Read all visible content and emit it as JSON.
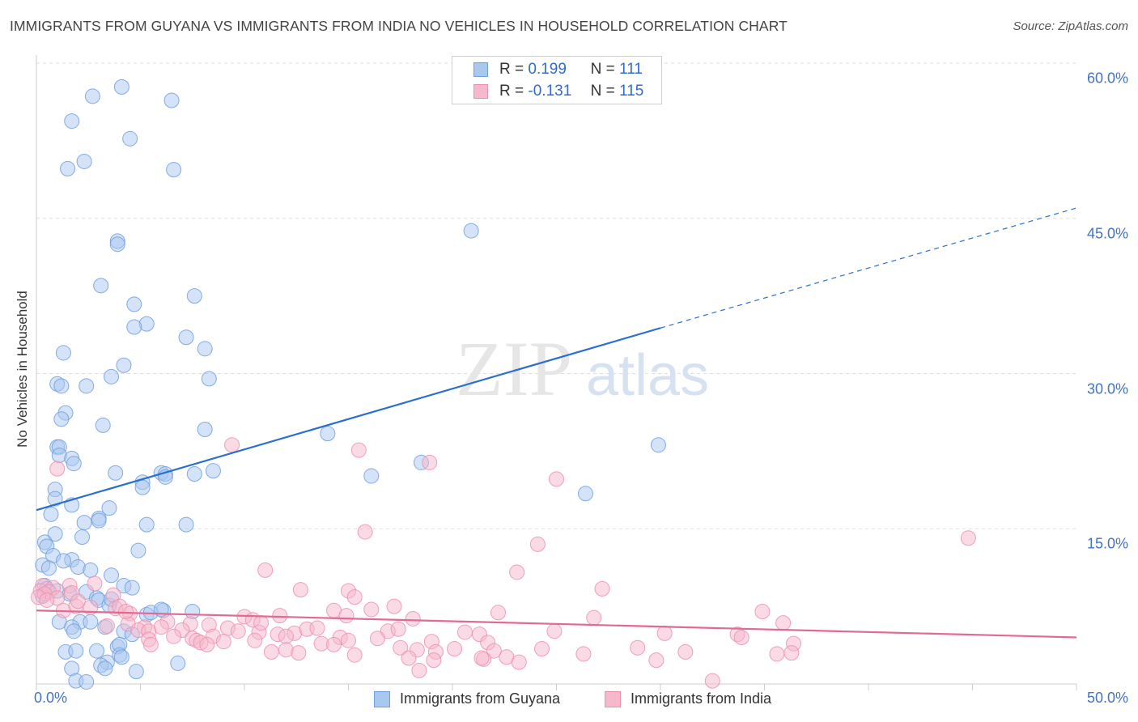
{
  "header": {
    "title": "IMMIGRANTS FROM GUYANA VS IMMIGRANTS FROM INDIA NO VEHICLES IN HOUSEHOLD CORRELATION CHART",
    "source": "Source: ZipAtlas.com"
  },
  "watermark": {
    "zip": "ZIP",
    "atlas": "atlas"
  },
  "legend_top": {
    "rows": [
      {
        "r_label": "R =",
        "r_value": "0.199",
        "n_label": "N =",
        "n_value": "111"
      },
      {
        "r_label": "R =",
        "r_value": "-0.131",
        "n_label": "N =",
        "n_value": "115"
      }
    ]
  },
  "colors": {
    "guyana_fill": "#a9c8f0",
    "guyana_stroke": "#6f9fe0",
    "guyana_line": "#2a6fcc",
    "india_fill": "#f6b8cb",
    "india_stroke": "#ee8fac",
    "india_line": "#e06a92",
    "tick_text": "#4472c4",
    "grid": "#dddddd"
  },
  "chart_data": {
    "type": "scatter",
    "xlabel": "",
    "ylabel": "No Vehicles in Household",
    "xlim": [
      0,
      50
    ],
    "ylim": [
      0,
      60
    ],
    "x_ticks": [
      0,
      5,
      10,
      15,
      20,
      25,
      30,
      35,
      40,
      45,
      50
    ],
    "x_tick_labels": {
      "left": "0.0%",
      "right": "50.0%"
    },
    "y_ticks": [
      {
        "value": 15,
        "label": "15.0%"
      },
      {
        "value": 30,
        "label": "30.0%"
      },
      {
        "value": 45,
        "label": "45.0%"
      },
      {
        "value": 60,
        "label": "60.0%"
      }
    ],
    "grid": true,
    "legend_position": "bottom",
    "series": [
      {
        "name": "Immigrants from Guyana",
        "r": 0.199,
        "n": 111,
        "trend": {
          "x0": 0,
          "y0": 16.8,
          "x1": 30,
          "y1": 34.4,
          "dash_x1": 50,
          "dash_y1": 46.0
        },
        "points": [
          [
            2.7,
            56.8
          ],
          [
            4.1,
            57.7
          ],
          [
            6.5,
            56.4
          ],
          [
            1.7,
            54.4
          ],
          [
            4.5,
            52.7
          ],
          [
            2.3,
            50.5
          ],
          [
            1.5,
            49.8
          ],
          [
            6.6,
            49.7
          ],
          [
            20.9,
            43.8
          ],
          [
            3.9,
            42.8
          ],
          [
            3.9,
            42.5
          ],
          [
            3.1,
            38.5
          ],
          [
            7.6,
            37.5
          ],
          [
            4.7,
            36.7
          ],
          [
            5.3,
            34.8
          ],
          [
            4.7,
            34.5
          ],
          [
            7.2,
            33.5
          ],
          [
            8.1,
            32.4
          ],
          [
            1.3,
            32.0
          ],
          [
            4.2,
            30.8
          ],
          [
            3.6,
            29.7
          ],
          [
            8.3,
            29.5
          ],
          [
            1.0,
            29.0
          ],
          [
            1.2,
            28.8
          ],
          [
            2.4,
            28.8
          ],
          [
            1.4,
            26.2
          ],
          [
            1.2,
            25.6
          ],
          [
            3.2,
            25.0
          ],
          [
            8.1,
            24.6
          ],
          [
            14.0,
            24.2
          ],
          [
            29.9,
            23.1
          ],
          [
            1.0,
            22.9
          ],
          [
            1.1,
            22.9
          ],
          [
            1.1,
            22.1
          ],
          [
            1.7,
            21.8
          ],
          [
            1.8,
            21.3
          ],
          [
            18.5,
            21.4
          ],
          [
            3.8,
            20.4
          ],
          [
            6.0,
            20.4
          ],
          [
            6.2,
            20.3
          ],
          [
            7.6,
            20.3
          ],
          [
            8.5,
            20.6
          ],
          [
            6.2,
            20.0
          ],
          [
            16.1,
            20.1
          ],
          [
            5.1,
            19.5
          ],
          [
            5.1,
            19.0
          ],
          [
            26.4,
            18.4
          ],
          [
            0.9,
            18.8
          ],
          [
            0.9,
            17.9
          ],
          [
            1.7,
            17.3
          ],
          [
            3.5,
            17.0
          ],
          [
            0.7,
            16.4
          ],
          [
            3.0,
            16.0
          ],
          [
            2.3,
            15.6
          ],
          [
            3.0,
            15.8
          ],
          [
            5.3,
            15.4
          ],
          [
            7.2,
            15.4
          ],
          [
            0.9,
            14.5
          ],
          [
            2.2,
            14.2
          ],
          [
            0.4,
            13.7
          ],
          [
            0.5,
            13.3
          ],
          [
            0.8,
            12.4
          ],
          [
            4.9,
            12.9
          ],
          [
            1.7,
            12.0
          ],
          [
            1.3,
            11.9
          ],
          [
            2.0,
            11.3
          ],
          [
            0.3,
            11.5
          ],
          [
            0.6,
            11.2
          ],
          [
            2.6,
            11.0
          ],
          [
            3.6,
            10.5
          ],
          [
            0.4,
            9.5
          ],
          [
            4.2,
            9.5
          ],
          [
            4.6,
            9.3
          ],
          [
            0.5,
            9.2
          ],
          [
            1.0,
            9.0
          ],
          [
            2.4,
            8.9
          ],
          [
            1.6,
            8.7
          ],
          [
            0.3,
            8.5
          ],
          [
            2.9,
            8.3
          ],
          [
            3.0,
            8.1
          ],
          [
            3.5,
            7.6
          ],
          [
            6.1,
            7.1
          ],
          [
            5.3,
            6.7
          ],
          [
            1.1,
            6.0
          ],
          [
            2.1,
            6.0
          ],
          [
            2.6,
            6.0
          ],
          [
            1.7,
            5.5
          ],
          [
            3.3,
            5.5
          ],
          [
            1.8,
            5.1
          ],
          [
            4.2,
            5.1
          ],
          [
            1.4,
            3.1
          ],
          [
            1.9,
            3.2
          ],
          [
            2.9,
            3.2
          ],
          [
            3.9,
            3.6
          ],
          [
            4.0,
            3.8
          ],
          [
            4.0,
            2.8
          ],
          [
            4.1,
            2.6
          ],
          [
            3.4,
            2.1
          ],
          [
            3.1,
            1.8
          ],
          [
            3.3,
            1.5
          ],
          [
            4.8,
            1.2
          ],
          [
            1.7,
            1.5
          ],
          [
            6.8,
            2.0
          ],
          [
            1.9,
            0.3
          ],
          [
            2.4,
            0.2
          ],
          [
            5.5,
            6.9
          ],
          [
            4.6,
            4.8
          ],
          [
            6.0,
            7.2
          ],
          [
            7.5,
            7.0
          ],
          [
            3.6,
            8.2
          ]
        ]
      },
      {
        "name": "Immigrants from India",
        "r": -0.131,
        "n": 115,
        "trend": {
          "x0": 0,
          "y0": 7.1,
          "x1": 50,
          "y1": 4.5
        },
        "points": [
          [
            1.0,
            20.8
          ],
          [
            9.4,
            23.1
          ],
          [
            15.5,
            22.6
          ],
          [
            18.9,
            21.4
          ],
          [
            25.0,
            19.8
          ],
          [
            15.8,
            14.7
          ],
          [
            44.8,
            14.1
          ],
          [
            24.1,
            13.5
          ],
          [
            11.0,
            11.0
          ],
          [
            23.1,
            10.8
          ],
          [
            0.3,
            9.5
          ],
          [
            0.8,
            9.3
          ],
          [
            1.6,
            9.5
          ],
          [
            0.2,
            9.0
          ],
          [
            0.6,
            8.9
          ],
          [
            1.7,
            8.8
          ],
          [
            0.4,
            8.7
          ],
          [
            0.1,
            8.4
          ],
          [
            1.0,
            8.3
          ],
          [
            2.8,
            9.7
          ],
          [
            3.7,
            8.6
          ],
          [
            12.7,
            9.1
          ],
          [
            15.0,
            9.0
          ],
          [
            27.2,
            9.2
          ],
          [
            15.3,
            8.4
          ],
          [
            0.5,
            8.1
          ],
          [
            1.9,
            7.5
          ],
          [
            2.6,
            7.4
          ],
          [
            3.8,
            7.3
          ],
          [
            1.3,
            7.1
          ],
          [
            4.0,
            7.5
          ],
          [
            4.5,
            6.8
          ],
          [
            14.3,
            7.1
          ],
          [
            16.1,
            7.2
          ],
          [
            17.2,
            7.5
          ],
          [
            22.2,
            6.9
          ],
          [
            34.9,
            7.0
          ],
          [
            10.0,
            6.5
          ],
          [
            10.4,
            6.2
          ],
          [
            18.1,
            6.3
          ],
          [
            14.9,
            6.6
          ],
          [
            26.8,
            6.4
          ],
          [
            35.9,
            5.9
          ],
          [
            4.4,
            5.8
          ],
          [
            6.3,
            6.0
          ],
          [
            7.4,
            5.8
          ],
          [
            3.4,
            5.6
          ],
          [
            5.2,
            5.5
          ],
          [
            6.0,
            5.5
          ],
          [
            8.3,
            5.7
          ],
          [
            9.2,
            5.4
          ],
          [
            4.9,
            5.2
          ],
          [
            5.4,
            5.1
          ],
          [
            7.0,
            5.2
          ],
          [
            9.7,
            5.1
          ],
          [
            10.7,
            5.0
          ],
          [
            12.4,
            4.9
          ],
          [
            13.0,
            5.3
          ],
          [
            13.5,
            5.4
          ],
          [
            16.9,
            5.1
          ],
          [
            17.4,
            5.3
          ],
          [
            11.6,
            4.8
          ],
          [
            12.0,
            4.6
          ],
          [
            20.6,
            5.0
          ],
          [
            21.3,
            4.8
          ],
          [
            24.9,
            5.1
          ],
          [
            30.2,
            4.9
          ],
          [
            33.7,
            4.8
          ],
          [
            33.9,
            4.5
          ],
          [
            6.6,
            4.6
          ],
          [
            7.5,
            4.4
          ],
          [
            8.5,
            4.6
          ],
          [
            9.0,
            4.1
          ],
          [
            14.6,
            4.5
          ],
          [
            15.0,
            4.2
          ],
          [
            19.0,
            4.1
          ],
          [
            5.4,
            4.3
          ],
          [
            5.5,
            3.8
          ],
          [
            7.7,
            4.2
          ],
          [
            7.9,
            4.0
          ],
          [
            8.2,
            3.8
          ],
          [
            10.5,
            4.2
          ],
          [
            13.7,
            3.9
          ],
          [
            14.3,
            3.8
          ],
          [
            17.5,
            3.5
          ],
          [
            20.1,
            3.4
          ],
          [
            21.7,
            4.0
          ],
          [
            28.9,
            3.5
          ],
          [
            36.4,
            3.9
          ],
          [
            11.3,
            3.1
          ],
          [
            12.0,
            3.3
          ],
          [
            12.6,
            3.0
          ],
          [
            18.3,
            3.3
          ],
          [
            19.2,
            3.1
          ],
          [
            22.0,
            3.2
          ],
          [
            24.3,
            3.4
          ],
          [
            31.2,
            3.1
          ],
          [
            15.3,
            2.8
          ],
          [
            17.9,
            2.5
          ],
          [
            21.5,
            2.4
          ],
          [
            22.6,
            2.6
          ],
          [
            26.3,
            2.9
          ],
          [
            35.6,
            2.9
          ],
          [
            36.3,
            3.0
          ],
          [
            19.1,
            2.3
          ],
          [
            21.4,
            2.5
          ],
          [
            23.2,
            2.1
          ],
          [
            18.4,
            1.3
          ],
          [
            29.8,
            2.3
          ],
          [
            32.5,
            0.3
          ],
          [
            2.0,
            8.0
          ],
          [
            4.3,
            7.0
          ],
          [
            10.8,
            5.9
          ],
          [
            16.4,
            4.4
          ],
          [
            11.7,
            6.6
          ]
        ]
      }
    ]
  },
  "legend_bottom": {
    "items": [
      {
        "label": "Immigrants from Guyana"
      },
      {
        "label": "Immigrants from India"
      }
    ]
  }
}
